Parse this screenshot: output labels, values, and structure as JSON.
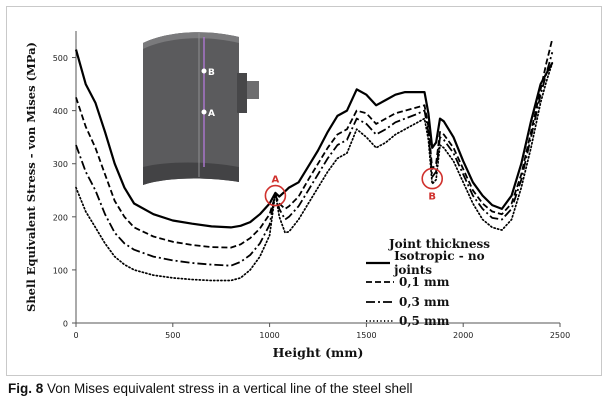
{
  "caption": {
    "figure_label": "Fig. 8",
    "text": " Von Mises equivalent stress in a vertical line of the steel shell"
  },
  "annotations": [
    {
      "letter": "A",
      "x": 1030,
      "y": 240
    },
    {
      "letter": "B",
      "x": 1840,
      "y": 272
    }
  ],
  "model_points": {
    "upper": "B",
    "lower": "A"
  },
  "colors": {
    "series": "#000000",
    "annotation": "#d0312d",
    "model": "#5b5b5d"
  },
  "chart_data": {
    "type": "line",
    "xlabel": "Height (mm)",
    "ylabel": "Shell Equivalent Stress - von Mises (MPa)",
    "xlim": [
      0,
      2500
    ],
    "ylim": [
      0,
      550
    ],
    "xticks": [
      0,
      500,
      1000,
      1500,
      2000,
      2500
    ],
    "yticks": [
      0,
      100,
      200,
      300,
      400,
      500
    ],
    "grid": false,
    "legend_title": "Joint thickness",
    "legend_position": "lower-right",
    "series": [
      {
        "name": "Isotropic - no joints",
        "style": "solid",
        "x": [
          0,
          50,
          100,
          150,
          200,
          250,
          300,
          400,
          500,
          600,
          700,
          800,
          850,
          900,
          950,
          1000,
          1030,
          1050,
          1080,
          1100,
          1150,
          1200,
          1250,
          1300,
          1350,
          1400,
          1450,
          1500,
          1550,
          1600,
          1650,
          1700,
          1750,
          1800,
          1820,
          1840,
          1860,
          1880,
          1900,
          1950,
          2000,
          2050,
          2100,
          2150,
          2200,
          2250,
          2300,
          2350,
          2400,
          2430,
          2460
        ],
        "y": [
          515,
          450,
          415,
          360,
          300,
          255,
          225,
          205,
          193,
          187,
          182,
          180,
          183,
          190,
          205,
          225,
          245,
          238,
          248,
          255,
          265,
          295,
          325,
          360,
          390,
          400,
          440,
          430,
          410,
          420,
          430,
          435,
          435,
          435,
          395,
          330,
          340,
          385,
          380,
          350,
          305,
          265,
          240,
          222,
          215,
          240,
          300,
          380,
          450,
          470,
          490
        ]
      },
      {
        "name": "0,1 mm",
        "style": "dashed",
        "x": [
          0,
          50,
          100,
          150,
          200,
          250,
          300,
          400,
          500,
          600,
          700,
          800,
          850,
          900,
          950,
          1000,
          1030,
          1050,
          1080,
          1100,
          1150,
          1200,
          1250,
          1300,
          1350,
          1400,
          1450,
          1500,
          1550,
          1600,
          1650,
          1700,
          1750,
          1800,
          1820,
          1840,
          1860,
          1880,
          1900,
          1950,
          2000,
          2050,
          2100,
          2150,
          2200,
          2250,
          2300,
          2350,
          2400,
          2430,
          2460
        ],
        "y": [
          425,
          370,
          330,
          280,
          230,
          200,
          180,
          163,
          153,
          147,
          143,
          142,
          148,
          160,
          178,
          205,
          240,
          225,
          215,
          220,
          238,
          270,
          300,
          330,
          355,
          365,
          400,
          395,
          375,
          385,
          395,
          400,
          405,
          410,
          370,
          290,
          300,
          360,
          355,
          330,
          290,
          250,
          225,
          210,
          205,
          225,
          280,
          360,
          440,
          490,
          535
        ]
      },
      {
        "name": "0,3 mm",
        "style": "dashdot",
        "x": [
          0,
          50,
          100,
          150,
          200,
          250,
          300,
          400,
          500,
          600,
          700,
          800,
          850,
          900,
          950,
          1000,
          1030,
          1050,
          1080,
          1100,
          1150,
          1200,
          1250,
          1300,
          1350,
          1400,
          1450,
          1500,
          1550,
          1600,
          1650,
          1700,
          1750,
          1800,
          1820,
          1840,
          1860,
          1880,
          1900,
          1950,
          2000,
          2050,
          2100,
          2150,
          2200,
          2250,
          2300,
          2350,
          2400,
          2430,
          2460
        ],
        "y": [
          335,
          285,
          250,
          205,
          170,
          150,
          138,
          125,
          118,
          113,
          110,
          108,
          115,
          128,
          150,
          185,
          245,
          215,
          195,
          200,
          220,
          250,
          280,
          310,
          335,
          345,
          385,
          375,
          355,
          365,
          378,
          385,
          392,
          400,
          360,
          275,
          285,
          350,
          345,
          320,
          280,
          240,
          215,
          198,
          195,
          215,
          270,
          350,
          430,
          470,
          510
        ]
      },
      {
        "name": "0,5 mm",
        "style": "dotted",
        "x": [
          0,
          50,
          100,
          150,
          200,
          250,
          300,
          400,
          500,
          600,
          700,
          800,
          850,
          900,
          950,
          1000,
          1030,
          1050,
          1080,
          1100,
          1150,
          1200,
          1250,
          1300,
          1350,
          1400,
          1450,
          1500,
          1550,
          1600,
          1650,
          1700,
          1750,
          1800,
          1820,
          1840,
          1860,
          1880,
          1900,
          1950,
          2000,
          2050,
          2100,
          2150,
          2200,
          2250,
          2300,
          2350,
          2400,
          2430,
          2460
        ],
        "y": [
          255,
          210,
          180,
          150,
          125,
          110,
          100,
          90,
          85,
          82,
          80,
          80,
          85,
          100,
          125,
          165,
          245,
          200,
          170,
          172,
          195,
          225,
          255,
          285,
          310,
          320,
          365,
          350,
          330,
          340,
          355,
          365,
          375,
          385,
          345,
          262,
          270,
          335,
          330,
          305,
          265,
          225,
          195,
          180,
          175,
          195,
          255,
          330,
          415,
          455,
          490
        ]
      }
    ]
  }
}
